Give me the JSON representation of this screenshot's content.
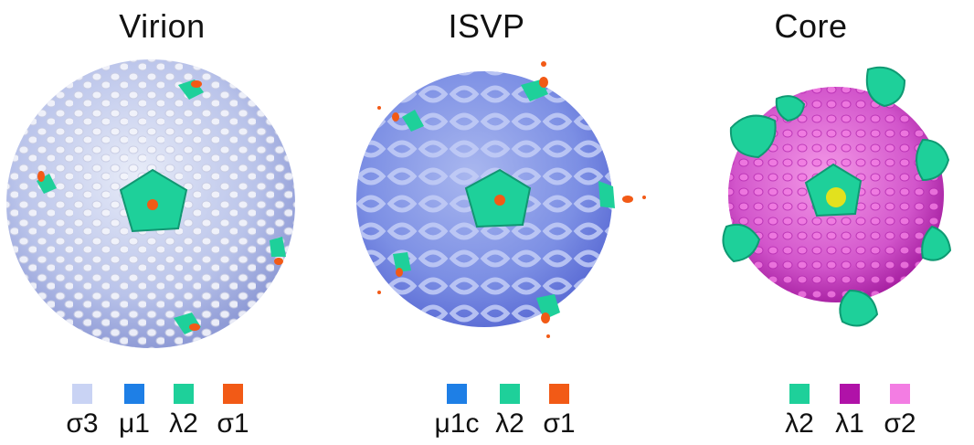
{
  "panels": [
    {
      "title": "Virion",
      "legend": [
        {
          "label": "σ3",
          "color": "#c9d3f4"
        },
        {
          "label": "μ1",
          "color": "#1e7fe6"
        },
        {
          "label": "λ2",
          "color": "#1ed09a"
        },
        {
          "label": "σ1",
          "color": "#f25a16"
        }
      ]
    },
    {
      "title": "ISVP",
      "legend": [
        {
          "label": "μ1c",
          "color": "#1e7fe6"
        },
        {
          "label": "λ2",
          "color": "#1ed09a"
        },
        {
          "label": "σ1",
          "color": "#f25a16"
        }
      ]
    },
    {
      "title": "Core",
      "legend": [
        {
          "label": "λ2",
          "color": "#1ed09a"
        },
        {
          "label": "λ1",
          "color": "#b012a8"
        },
        {
          "label": "σ2",
          "color": "#f37de3"
        }
      ]
    }
  ]
}
